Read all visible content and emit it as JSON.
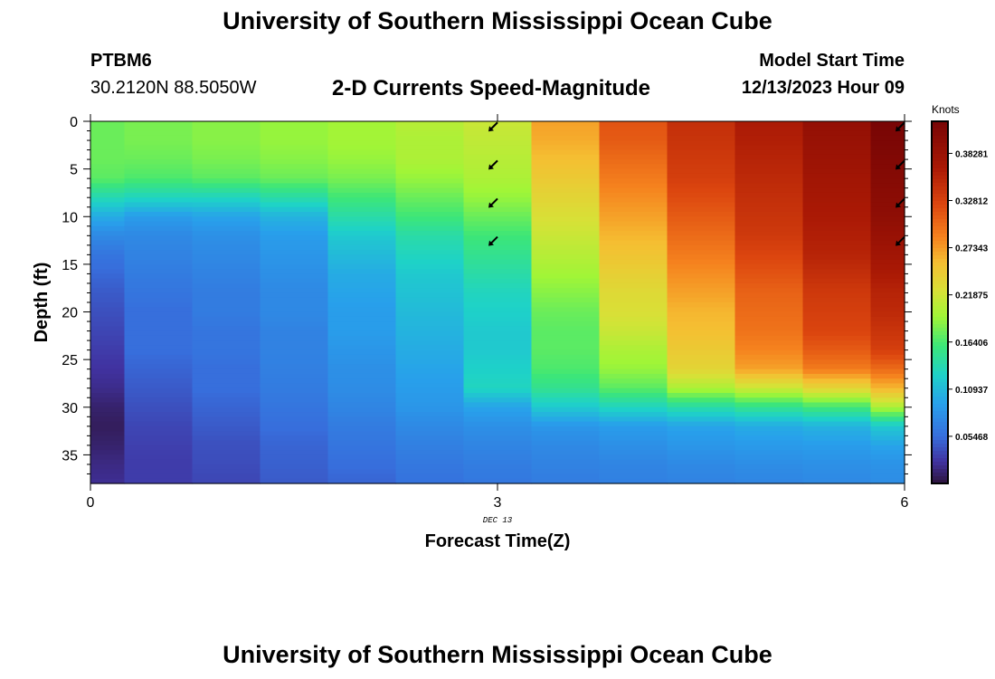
{
  "page": {
    "title": "University of Southern Mississippi Ocean Cube",
    "station_id": "PTBM6",
    "station_coords": "30.2120N  88.5050W",
    "subtitle": "2-D Currents Speed-Magnitude",
    "model_start_label": "Model Start Time",
    "model_start_value": "12/13/2023 Hour 09",
    "second_title": "University of Southern Mississippi Ocean Cube"
  },
  "chart_data": {
    "type": "heatmap",
    "xlabel": "Forecast Time(Z)",
    "ylabel": "Depth (ft)",
    "x_date_label": "DEC 13",
    "xlim": [
      0,
      6
    ],
    "ylim": [
      38,
      0
    ],
    "x_ticks": [
      0,
      3,
      6
    ],
    "y_ticks": [
      0,
      5,
      10,
      15,
      20,
      25,
      30,
      35
    ],
    "colorbar": {
      "label": "Knots",
      "range": [
        0.0,
        0.42
      ],
      "tick_values": [
        0.05468,
        0.10937,
        0.16406,
        0.21875,
        0.27343,
        0.32812,
        0.38281
      ],
      "tick_labels": [
        "0.05468",
        "0.10937",
        "0.16406",
        "0.21875",
        "0.27343",
        "0.32812",
        "0.38281"
      ]
    },
    "time_columns": [
      0,
      0.5,
      1,
      1.5,
      2,
      2.5,
      3,
      3.5,
      4,
      4.5,
      5,
      5.5,
      6
    ],
    "depth_profile": {
      "depths": [
        0,
        2,
        4,
        6,
        8,
        10,
        12,
        14,
        16,
        18,
        20,
        22,
        24,
        26,
        28,
        30,
        32,
        34,
        36,
        38
      ],
      "speeds_by_column": [
        [
          0.175,
          0.175,
          0.175,
          0.17,
          0.135,
          0.1,
          0.075,
          0.06,
          0.052,
          0.045,
          0.04,
          0.035,
          0.03,
          0.025,
          0.02,
          0.012,
          0.008,
          0.012,
          0.018,
          0.022
        ],
        [
          0.18,
          0.18,
          0.175,
          0.165,
          0.13,
          0.09,
          0.075,
          0.07,
          0.065,
          0.06,
          0.055,
          0.055,
          0.055,
          0.05,
          0.045,
          0.04,
          0.035,
          0.032,
          0.03,
          0.03
        ],
        [
          0.185,
          0.185,
          0.18,
          0.17,
          0.13,
          0.095,
          0.08,
          0.075,
          0.07,
          0.065,
          0.065,
          0.06,
          0.06,
          0.055,
          0.055,
          0.05,
          0.045,
          0.04,
          0.038,
          0.035
        ],
        [
          0.19,
          0.19,
          0.185,
          0.175,
          0.14,
          0.105,
          0.09,
          0.085,
          0.08,
          0.075,
          0.075,
          0.07,
          0.07,
          0.068,
          0.065,
          0.06,
          0.055,
          0.05,
          0.048,
          0.045
        ],
        [
          0.195,
          0.195,
          0.19,
          0.18,
          0.16,
          0.14,
          0.12,
          0.11,
          0.1,
          0.095,
          0.09,
          0.09,
          0.085,
          0.08,
          0.078,
          0.072,
          0.065,
          0.06,
          0.055,
          0.05
        ],
        [
          0.205,
          0.2,
          0.2,
          0.19,
          0.175,
          0.16,
          0.14,
          0.13,
          0.12,
          0.115,
          0.11,
          0.105,
          0.1,
          0.095,
          0.09,
          0.085,
          0.075,
          0.068,
          0.062,
          0.058
        ],
        [
          0.215,
          0.21,
          0.205,
          0.2,
          0.19,
          0.175,
          0.16,
          0.15,
          0.14,
          0.13,
          0.125,
          0.12,
          0.12,
          0.125,
          0.13,
          0.095,
          0.08,
          0.072,
          0.066,
          0.062
        ],
        [
          0.27,
          0.265,
          0.255,
          0.245,
          0.235,
          0.225,
          0.215,
          0.205,
          0.195,
          0.185,
          0.175,
          0.17,
          0.17,
          0.165,
          0.15,
          0.12,
          0.085,
          0.075,
          0.07,
          0.065
        ],
        [
          0.315,
          0.31,
          0.3,
          0.29,
          0.28,
          0.27,
          0.26,
          0.25,
          0.24,
          0.23,
          0.225,
          0.215,
          0.2,
          0.19,
          0.17,
          0.13,
          0.09,
          0.08,
          0.072,
          0.068
        ],
        [
          0.345,
          0.34,
          0.335,
          0.33,
          0.32,
          0.31,
          0.3,
          0.29,
          0.28,
          0.27,
          0.26,
          0.255,
          0.245,
          0.235,
          0.2,
          0.14,
          0.095,
          0.085,
          0.075,
          0.07
        ],
        [
          0.365,
          0.36,
          0.355,
          0.35,
          0.345,
          0.34,
          0.335,
          0.325,
          0.315,
          0.305,
          0.3,
          0.295,
          0.285,
          0.27,
          0.215,
          0.15,
          0.1,
          0.088,
          0.078,
          0.072
        ],
        [
          0.39,
          0.385,
          0.38,
          0.375,
          0.37,
          0.365,
          0.36,
          0.355,
          0.345,
          0.335,
          0.33,
          0.325,
          0.31,
          0.29,
          0.235,
          0.16,
          0.105,
          0.09,
          0.08,
          0.075
        ],
        [
          0.42,
          0.415,
          0.41,
          0.405,
          0.4,
          0.395,
          0.385,
          0.375,
          0.365,
          0.355,
          0.35,
          0.34,
          0.33,
          0.3,
          0.26,
          0.2,
          0.12,
          0.095,
          0.082,
          0.078
        ]
      ]
    },
    "vectors": [
      {
        "time": 3,
        "depth": 0.5,
        "direction": "southwest"
      },
      {
        "time": 3,
        "depth": 4.5,
        "direction": "southwest"
      },
      {
        "time": 3,
        "depth": 8.5,
        "direction": "southwest"
      },
      {
        "time": 3,
        "depth": 12.5,
        "direction": "southwest"
      },
      {
        "time": 6,
        "depth": 0.5,
        "direction": "southwest"
      },
      {
        "time": 6,
        "depth": 4.5,
        "direction": "southwest"
      },
      {
        "time": 6,
        "depth": 8.5,
        "direction": "southwest"
      },
      {
        "time": 6,
        "depth": 12.5,
        "direction": "southwest"
      }
    ]
  }
}
